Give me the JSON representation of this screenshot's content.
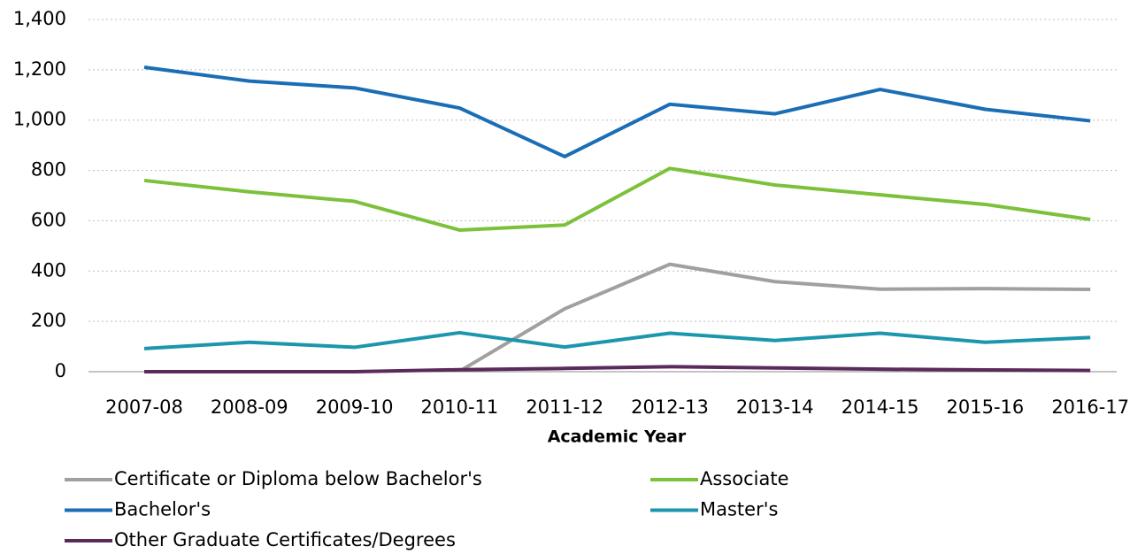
{
  "chart_data": {
    "type": "line",
    "x_label": "Academic Year",
    "categories": [
      "2007-08",
      "2008-09",
      "2009-10",
      "2010-11",
      "2011-12",
      "2012-13",
      "2013-14",
      "2014-15",
      "2015-16",
      "2016-17"
    ],
    "series": [
      {
        "name": "Certificate or Diploma below Bachelor's",
        "color": "#a0a0a0",
        "values": [
          null,
          null,
          null,
          2,
          250,
          427,
          358,
          328,
          330,
          327
        ]
      },
      {
        "name": "Associate",
        "color": "#7dc13b",
        "values": [
          760,
          715,
          677,
          563,
          583,
          808,
          742,
          703,
          665,
          605
        ]
      },
      {
        "name": "Bachelor's",
        "color": "#1a6eb5",
        "values": [
          1210,
          1155,
          1128,
          1048,
          855,
          1063,
          1025,
          1122,
          1043,
          997
        ]
      },
      {
        "name": "Master's",
        "color": "#1b96ad",
        "values": [
          92,
          117,
          97,
          155,
          98,
          153,
          124,
          153,
          117,
          136
        ]
      },
      {
        "name": "Other Graduate Certificates/Degrees",
        "color": "#5a2a5c",
        "values": [
          0,
          0,
          0,
          8,
          13,
          20,
          15,
          10,
          7,
          5
        ]
      }
    ],
    "ylim": [
      0,
      1400
    ],
    "yticks": [
      0,
      200,
      400,
      600,
      800,
      {
        "value": 1000,
        "label": "1,000"
      },
      {
        "value": 1200,
        "label": "1,200"
      },
      {
        "value": 1400,
        "label": "1,400"
      }
    ],
    "grid": true,
    "legend": "bottom"
  }
}
